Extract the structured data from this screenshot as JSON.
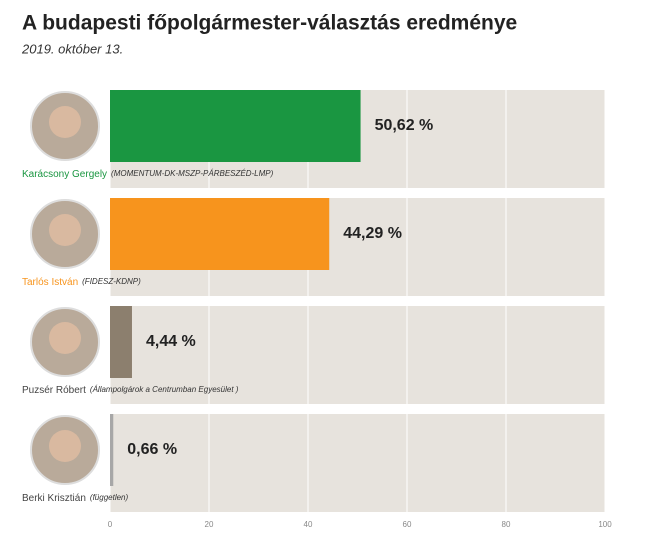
{
  "chart_data": {
    "type": "bar",
    "orientation": "horizontal",
    "title": "A budapesti főpolgármester-választás eredménye",
    "subtitle": "2019. október 13.",
    "categories": [
      "Karácsony Gergely",
      "Tarlós István",
      "Puzsér Róbert",
      "Berki Krisztián"
    ],
    "parties": [
      "(MOMENTUM-DK-MSZP-PÁRBESZÉD-LMP)",
      "(FIDESZ-KDNP)",
      "(Állampolgárok a Centrumban Egyesület )",
      "(független)"
    ],
    "values": [
      50.62,
      44.29,
      4.44,
      0.66
    ],
    "value_labels": [
      "50,62 %",
      "44,29 %",
      "4,44 %",
      "0,66 %"
    ],
    "colors": [
      "#1a9641",
      "#f7941d",
      "#8c7f6e",
      "#a7a7a7"
    ],
    "label_colors": [
      "#1a9641",
      "#f7941d",
      "#444444",
      "#444444"
    ],
    "xlim": [
      0,
      100
    ],
    "xticks": [
      0,
      20,
      40,
      60,
      80,
      100
    ],
    "grid": true
  }
}
